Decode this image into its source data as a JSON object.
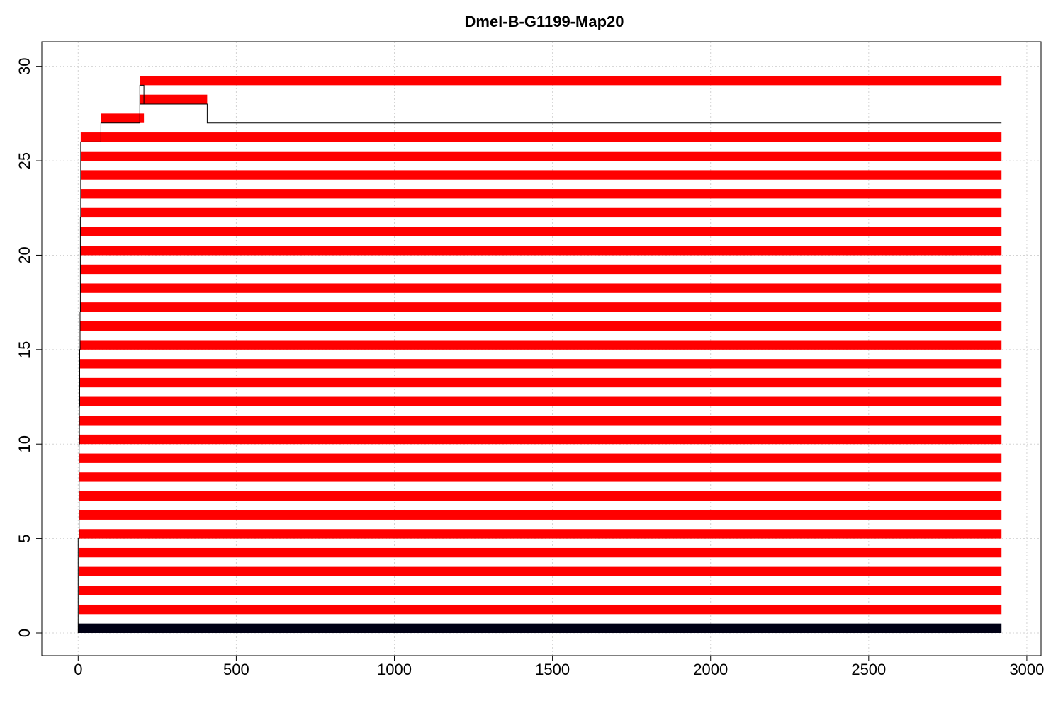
{
  "chart_data": {
    "type": "bar",
    "title": "Dmel-B-G1199-Map20",
    "xlabel": "",
    "ylabel": "",
    "xlim": [
      -115,
      3045
    ],
    "ylim": [
      -1.2,
      31.3
    ],
    "x_ticks": [
      0,
      500,
      1000,
      1500,
      2000,
      2500,
      3000
    ],
    "y_ticks": [
      0,
      5,
      10,
      15,
      20,
      25,
      30
    ],
    "grid": true,
    "bar_height": 0.5,
    "base_bar": {
      "start": 0,
      "end": 2920,
      "color": "#000014"
    },
    "bars": [
      {
        "row": 1,
        "start": 3,
        "end": 2920
      },
      {
        "row": 2,
        "start": 3,
        "end": 2920
      },
      {
        "row": 3,
        "start": 3,
        "end": 2920
      },
      {
        "row": 4,
        "start": 3,
        "end": 2920
      },
      {
        "row": 5,
        "start": 3,
        "end": 2920
      },
      {
        "row": 6,
        "start": 4,
        "end": 2920
      },
      {
        "row": 7,
        "start": 4,
        "end": 2920
      },
      {
        "row": 8,
        "start": 4,
        "end": 2920
      },
      {
        "row": 9,
        "start": 4,
        "end": 2920
      },
      {
        "row": 10,
        "start": 4,
        "end": 2920
      },
      {
        "row": 11,
        "start": 5,
        "end": 2920
      },
      {
        "row": 12,
        "start": 5,
        "end": 2920
      },
      {
        "row": 13,
        "start": 5,
        "end": 2920
      },
      {
        "row": 14,
        "start": 6,
        "end": 2920
      },
      {
        "row": 15,
        "start": 6,
        "end": 2920
      },
      {
        "row": 16,
        "start": 6,
        "end": 2920
      },
      {
        "row": 17,
        "start": 6,
        "end": 2920
      },
      {
        "row": 18,
        "start": 7,
        "end": 2920
      },
      {
        "row": 19,
        "start": 7,
        "end": 2920
      },
      {
        "row": 20,
        "start": 7,
        "end": 2920
      },
      {
        "row": 21,
        "start": 7,
        "end": 2920
      },
      {
        "row": 22,
        "start": 8,
        "end": 2920
      },
      {
        "row": 23,
        "start": 8,
        "end": 2920
      },
      {
        "row": 24,
        "start": 8,
        "end": 2920
      },
      {
        "row": 25,
        "start": 8,
        "end": 2920
      },
      {
        "row": 26,
        "start": 8,
        "end": 2920
      },
      {
        "row": 27,
        "start": 72,
        "end": 208
      },
      {
        "row": 28,
        "start": 195,
        "end": 408
      },
      {
        "row": 29,
        "start": 195,
        "end": 2920
      }
    ],
    "line": {
      "color": "#000000",
      "x": [
        0,
        0,
        3,
        3,
        4,
        4,
        5,
        5,
        6,
        6,
        7,
        7,
        8,
        8,
        72,
        72,
        195,
        195,
        208,
        208,
        195,
        195,
        408,
        408,
        2920
      ],
      "y": [
        0,
        5,
        5,
        10,
        10,
        12,
        12,
        15,
        15,
        17,
        17,
        22,
        22,
        26,
        26,
        27,
        27,
        29,
        29,
        28,
        28,
        28,
        28,
        27,
        27
      ]
    },
    "colors": {
      "bar": "#ff0000",
      "base": "#000014",
      "grid": "#d3d3d3",
      "axis": "#000000"
    }
  }
}
